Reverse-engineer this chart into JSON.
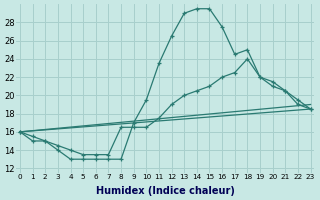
{
  "xlabel": "Humidex (Indice chaleur)",
  "bg_color": "#c8e8e4",
  "grid_color": "#a8cfcc",
  "line_color": "#2a7a72",
  "xlim": [
    -0.3,
    23.3
  ],
  "ylim": [
    11.5,
    30.0
  ],
  "yticks": [
    12,
    14,
    16,
    18,
    20,
    22,
    24,
    26,
    28
  ],
  "xticks": [
    0,
    1,
    2,
    3,
    4,
    5,
    6,
    7,
    8,
    9,
    10,
    11,
    12,
    13,
    14,
    15,
    16,
    17,
    18,
    19,
    20,
    21,
    22,
    23
  ],
  "line1_x": [
    0,
    1,
    2,
    3,
    4,
    5,
    6,
    7,
    8,
    9,
    10,
    11,
    12,
    13,
    14,
    15,
    16,
    17,
    18,
    19,
    20,
    21,
    22,
    23
  ],
  "line1_y": [
    16,
    15,
    15,
    14,
    13,
    13,
    13,
    13,
    13,
    17,
    19.5,
    23.5,
    26.5,
    29.0,
    29.5,
    29.5,
    27.5,
    24.5,
    25.0,
    22.0,
    21.0,
    20.5,
    19.0,
    18.5
  ],
  "line2_x": [
    0,
    1,
    2,
    3,
    4,
    5,
    6,
    7,
    8,
    9,
    10,
    11,
    12,
    13,
    14,
    15,
    16,
    17,
    18,
    19,
    20,
    21,
    22,
    23
  ],
  "line2_y": [
    16,
    15.5,
    15,
    14.5,
    14,
    13.5,
    13.5,
    13.5,
    16.5,
    16.5,
    16.5,
    17.5,
    19.0,
    20.0,
    20.5,
    21.0,
    22.0,
    22.5,
    24.0,
    22.0,
    21.5,
    20.5,
    19.5,
    18.5
  ],
  "line3_x": [
    0,
    23
  ],
  "line3_y": [
    16,
    18.5
  ],
  "line4_x": [
    0,
    23
  ],
  "line4_y": [
    16,
    19.0
  ]
}
